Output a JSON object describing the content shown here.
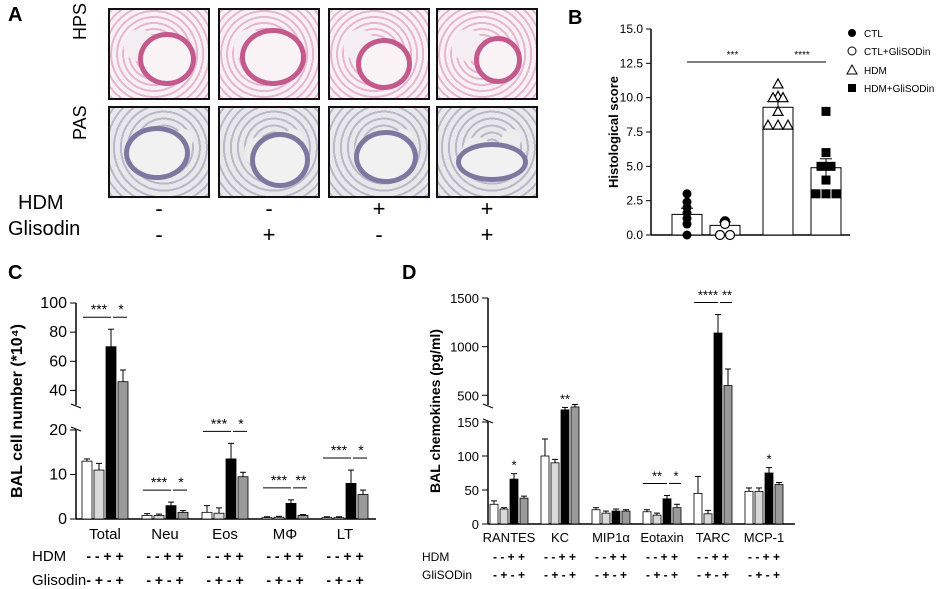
{
  "panel_a": {
    "label": "A",
    "row_labels": [
      "HPS",
      "PAS"
    ],
    "condition_labels": [
      "HDM",
      "Glisodin"
    ],
    "hdm_signs": [
      "-",
      "-",
      "+",
      "+"
    ],
    "glisodin_signs": [
      "-",
      "+",
      "-",
      "+"
    ]
  },
  "chart_data": [
    {
      "id": "B",
      "type": "scatter",
      "panel_label": "B",
      "ylabel": "Histological score",
      "ylim": [
        0,
        15
      ],
      "yticks": [
        "0.0",
        "2.5",
        "5.0",
        "7.5",
        "10.0",
        "12.5",
        "15.0"
      ],
      "legend": [
        "CTL",
        "CTL+GliSODin",
        "HDM",
        "HDM+GliSODin"
      ],
      "legend_placement": "top-right",
      "groups": [
        {
          "name": "CTL",
          "marker": "filled-circle",
          "mean": 1.5,
          "sem": 0.45,
          "points": [
            3.0,
            2.4,
            2.0,
            1.6,
            1.2,
            0.8,
            0.0
          ]
        },
        {
          "name": "CTL+GliSODin",
          "marker": "open-circle",
          "mean": 0.7,
          "sem": 0.25,
          "points": [
            1.0,
            0.95,
            0.9,
            0.85,
            0.8,
            0.0,
            0.0
          ]
        },
        {
          "name": "HDM",
          "marker": "open-triangle",
          "mean": 9.3,
          "sem": 0.5,
          "points": [
            11.0,
            10.1,
            10.0,
            10.0,
            9.0,
            8.0,
            8.0,
            8.0
          ]
        },
        {
          "name": "HDM+GliSODin",
          "marker": "filled-square",
          "mean": 4.9,
          "sem": 0.65,
          "points": [
            9.0,
            6.0,
            5.0,
            5.0,
            4.0,
            3.0,
            3.0,
            3.0
          ]
        }
      ],
      "significance": [
        {
          "from": 0,
          "to": 2,
          "label": "***"
        },
        {
          "from": 2,
          "to": 3,
          "label": "****"
        }
      ]
    },
    {
      "id": "C",
      "type": "bar",
      "panel_label": "C",
      "ylabel": "BAL cell number (*10⁴)",
      "categories": [
        "Total",
        "Neu",
        "Eos",
        "MΦ",
        "LT"
      ],
      "ylim": [
        0,
        100
      ],
      "broken_axis": {
        "lower": [
          0,
          20
        ],
        "upper": [
          30,
          100
        ]
      },
      "yticks_lower": [
        "0",
        "10",
        "20"
      ],
      "yticks_upper": [
        "40",
        "60",
        "80",
        "100"
      ],
      "series": [
        {
          "name": "CTL",
          "color": "#ffffff",
          "values": [
            13,
            0.8,
            1.5,
            0.3,
            0.3
          ],
          "errors": [
            0.5,
            0.4,
            1.5,
            0.2,
            0.2
          ]
        },
        {
          "name": "CTL+GliSODin",
          "color": "#d9d9d9",
          "values": [
            11,
            0.8,
            1.3,
            0.4,
            0.3
          ],
          "errors": [
            1.5,
            0.3,
            1.2,
            0.2,
            0.2
          ]
        },
        {
          "name": "HDM",
          "color": "#000000",
          "values": [
            70,
            3,
            13.5,
            3.5,
            8
          ],
          "errors": [
            12,
            0.8,
            3.5,
            0.8,
            3
          ]
        },
        {
          "name": "HDM+GliSODin",
          "color": "#9a9a9a",
          "values": [
            46,
            1.5,
            9.5,
            0.8,
            5.5
          ],
          "errors": [
            8,
            0.4,
            1,
            0.2,
            1
          ]
        }
      ],
      "significance": [
        {
          "category": 0,
          "labels": [
            "***",
            "*"
          ]
        },
        {
          "category": 1,
          "labels": [
            "***",
            "*"
          ]
        },
        {
          "category": 2,
          "labels": [
            "***",
            "*"
          ]
        },
        {
          "category": 3,
          "labels": [
            "***",
            "**"
          ]
        },
        {
          "category": 4,
          "labels": [
            "***",
            "*"
          ]
        }
      ],
      "condition_labels": [
        "HDM",
        "Glisodin"
      ],
      "hdm_signs": "- - + +",
      "glisodin_signs": "- + - +"
    },
    {
      "id": "D",
      "type": "bar",
      "panel_label": "D",
      "ylabel": "BAL chemokines (pg/ml)",
      "categories": [
        "RANTES",
        "KC",
        "MIP1α",
        "Eotaxin",
        "TARC",
        "MCP-1"
      ],
      "ylim": [
        0,
        1500
      ],
      "broken_axis": {
        "lower": [
          0,
          150
        ],
        "upper": [
          400,
          1500
        ]
      },
      "yticks_lower": [
        "0",
        "50",
        "100",
        "150"
      ],
      "yticks_upper": [
        "500",
        "1000",
        "1500"
      ],
      "series": [
        {
          "name": "CTL",
          "color": "#ffffff",
          "values": [
            29,
            100,
            21,
            18,
            45,
            48
          ],
          "errors": [
            5,
            25,
            3,
            3,
            25,
            5
          ]
        },
        {
          "name": "CTL+GliSODin",
          "color": "#d9d9d9",
          "values": [
            22,
            90,
            16,
            13,
            15,
            48
          ],
          "errors": [
            2,
            5,
            3,
            3,
            5,
            5
          ]
        },
        {
          "name": "HDM",
          "color": "#000000",
          "values": [
            66,
            350,
            19,
            37,
            1140,
            75
          ],
          "errors": [
            8,
            25,
            3,
            5,
            190,
            8
          ]
        },
        {
          "name": "HDM+GliSODin",
          "color": "#9a9a9a",
          "values": [
            38,
            380,
            19,
            24,
            600,
            58
          ],
          "errors": [
            3,
            25,
            2,
            5,
            170,
            3
          ]
        }
      ],
      "significance": [
        {
          "category": 0,
          "labels": [
            "*"
          ],
          "type": "star"
        },
        {
          "category": 1,
          "labels": [
            "**"
          ],
          "type": "star"
        },
        {
          "category": 3,
          "labels": [
            "**",
            "*"
          ],
          "type": "bracket"
        },
        {
          "category": 4,
          "labels": [
            "****",
            "**"
          ],
          "type": "bracket"
        },
        {
          "category": 5,
          "labels": [
            "*"
          ],
          "type": "star"
        }
      ],
      "condition_labels": [
        "HDM",
        "GliSODin"
      ],
      "hdm_signs": "- - + +",
      "glisodin_signs": "- + - +"
    }
  ]
}
